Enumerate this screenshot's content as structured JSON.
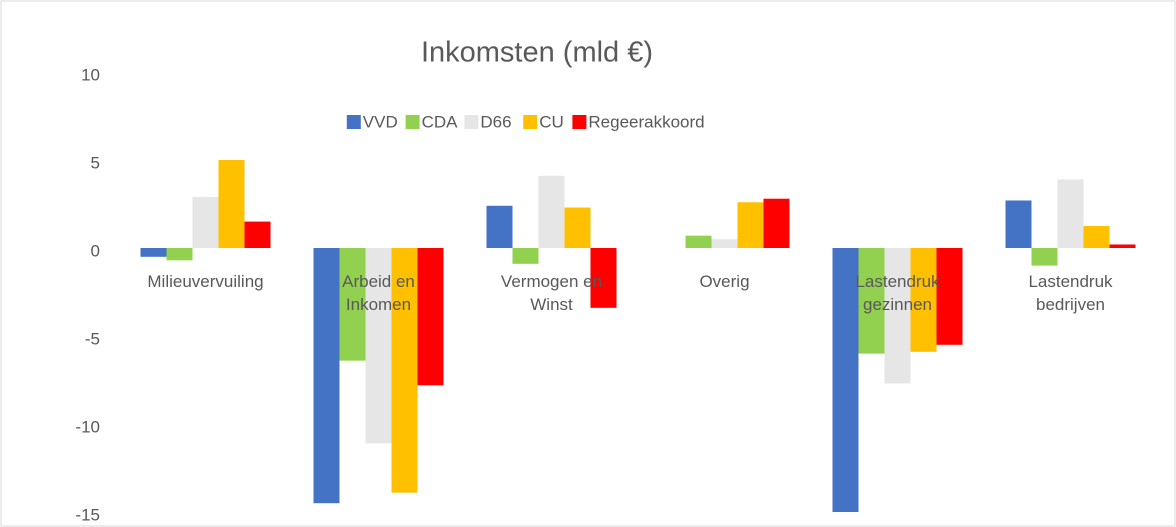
{
  "chart_data": {
    "type": "bar",
    "title": "Inkomsten (mld €)",
    "categories": [
      "Milieuvervuiling",
      "Arbeid en Inkomen",
      "Vermogen en Winst",
      "Overig",
      "Lastendruk gezinnen",
      "Lastendruk bedrijven"
    ],
    "series": [
      {
        "name": "VVD",
        "color": "#4472c4",
        "values": [
          -0.5,
          -14.5,
          2.4,
          0,
          -15.0,
          2.7
        ]
      },
      {
        "name": "CDA",
        "color": "#92d050",
        "values": [
          -0.7,
          -6.4,
          -0.9,
          0.7,
          -6.0,
          -1.0
        ]
      },
      {
        "name": "D66",
        "color": "#e7e6e6",
        "values": [
          2.9,
          -11.1,
          4.1,
          0.5,
          -7.7,
          3.9
        ]
      },
      {
        "name": "CU",
        "color": "#ffc000",
        "values": [
          5.0,
          -13.9,
          2.3,
          2.6,
          -5.9,
          1.25
        ]
      },
      {
        "name": "Regeerakkoord",
        "color": "#ff0000",
        "values": [
          1.5,
          -7.8,
          -3.4,
          2.8,
          -5.5,
          0.2
        ]
      }
    ],
    "ylim": [
      -15,
      10
    ],
    "yticks": [
      -15,
      -10,
      -5,
      0,
      5,
      10
    ],
    "legend": "top"
  }
}
